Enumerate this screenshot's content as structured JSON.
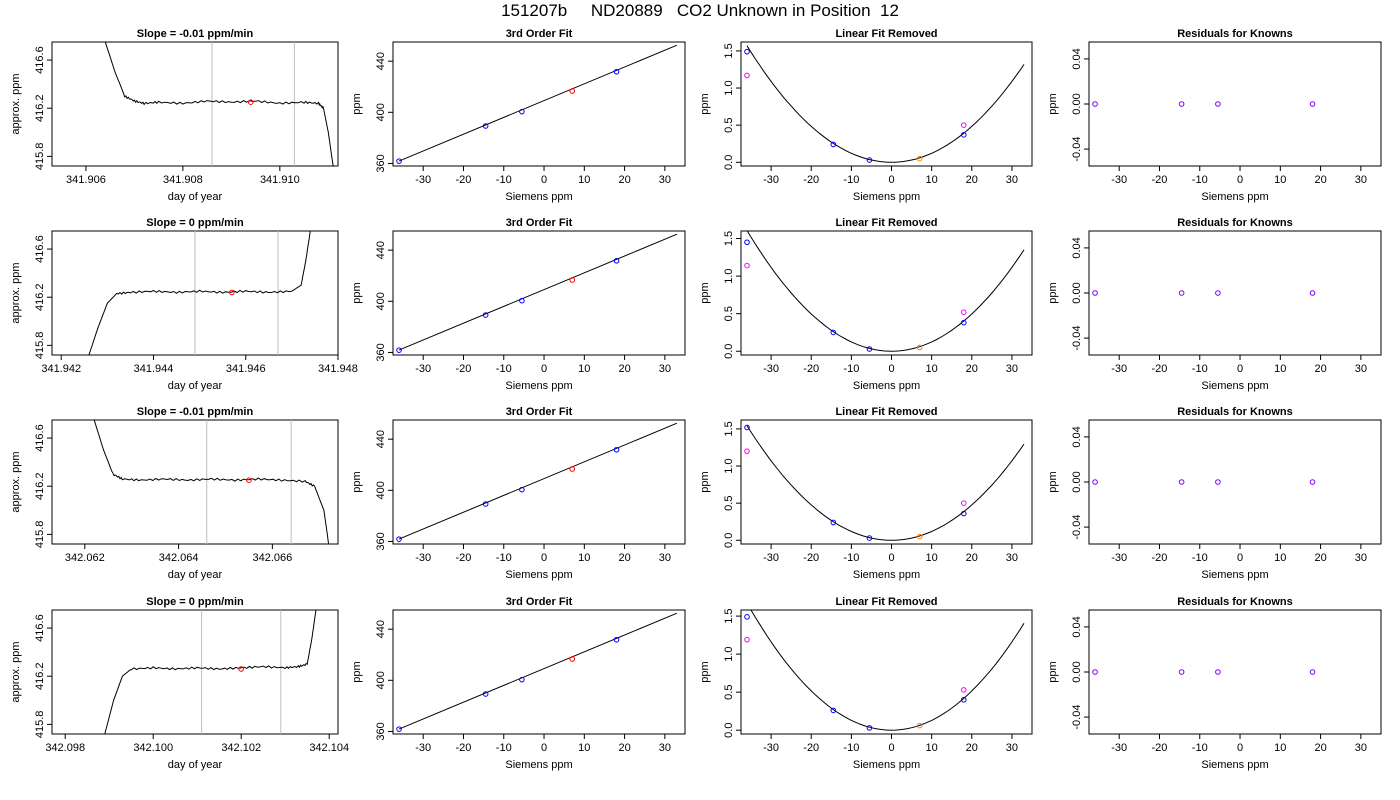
{
  "title": "151207b     ND20889   CO2 Unknown in Position  12",
  "labels": {
    "time_title_prefix": "Slope =  ",
    "time_title_suffix": "  ppm/min",
    "time_xlabel": "day of year",
    "time_ylabel": "approx. ppm",
    "fit_title": "3rd Order Fit",
    "fit_xlabel": "Siemens ppm",
    "fit_ylabel": "ppm",
    "lin_title": "Linear Fit Removed",
    "lin_xlabel": "Siemens ppm",
    "lin_ylabel": "ppm",
    "res_title": "Residuals for Knowns",
    "res_xlabel": "Siemens ppm",
    "res_ylabel": "ppm"
  },
  "colors": {
    "known_points": "#0000ff",
    "unknown_point": "#ff0000",
    "alt_points": "#ff00ff",
    "residual_points": "#8000ff",
    "highlight_point": "#ff8000",
    "line": "#000000",
    "window_lines": "#bebebe"
  },
  "chart_data": [
    {
      "row": 1,
      "time_trace": {
        "type": "line",
        "slope_value": "-0.01",
        "xlim": [
          341.9053,
          341.9112
        ],
        "ylim": [
          415.72,
          416.75
        ],
        "xticks": [
          "341.906",
          "341.908",
          "341.910"
        ],
        "yticks": [
          "415.8",
          "416.2",
          "416.6"
        ],
        "window": [
          341.9086,
          341.9103
        ],
        "unknown_point": {
          "x": 341.9094,
          "y": 416.25
        },
        "trace": [
          [
            341.9064,
            416.75
          ],
          [
            341.9066,
            416.5
          ],
          [
            341.9068,
            416.3
          ],
          [
            341.907,
            416.26
          ],
          [
            341.9072,
            416.24
          ],
          [
            341.9075,
            416.25
          ],
          [
            341.908,
            416.24
          ],
          [
            341.9085,
            416.26
          ],
          [
            341.909,
            416.25
          ],
          [
            341.9095,
            416.26
          ],
          [
            341.91,
            416.24
          ],
          [
            341.9105,
            416.25
          ],
          [
            341.9108,
            416.24
          ],
          [
            341.9109,
            416.2
          ],
          [
            341.911,
            416.0
          ],
          [
            341.9111,
            415.72
          ]
        ]
      },
      "fit": {
        "type": "line",
        "xlim": [
          -37.5,
          35.0
        ],
        "ylim": [
          358,
          455
        ],
        "xticks": [
          -30,
          -20,
          -10,
          0,
          10,
          20,
          30
        ],
        "yticks": [
          360,
          400,
          440
        ],
        "line": [
          [
            -36,
            361.8
          ],
          [
            33,
            452.5
          ]
        ],
        "knowns": [
          [
            -36,
            361.8
          ],
          [
            -14.5,
            389.3
          ],
          [
            -5.5,
            400.5
          ],
          [
            18,
            431.7
          ]
        ],
        "unknown": [
          [
            7,
            416.7
          ]
        ]
      },
      "linear_removed": {
        "type": "line",
        "xlim": [
          -37.5,
          35.0
        ],
        "ylim": [
          -0.05,
          1.62
        ],
        "xticks": [
          -30,
          -20,
          -10,
          0,
          10,
          20,
          30
        ],
        "yticks": [
          0.0,
          0.5,
          1.0,
          1.5
        ],
        "curve_coef": {
          "a": 0.00121,
          "b": -0.0,
          "c": 0.0
        },
        "knowns": [
          [
            -36,
            1.49
          ],
          [
            -14.5,
            0.24
          ],
          [
            -5.5,
            0.03
          ],
          [
            18,
            0.37
          ]
        ],
        "alt": [
          [
            -36,
            1.17
          ],
          [
            18,
            0.5
          ]
        ],
        "highlight": [
          [
            7,
            0.05
          ]
        ]
      },
      "residuals": {
        "type": "scatter",
        "xlim": [
          -37.5,
          35.0
        ],
        "ylim": [
          -0.055,
          0.055
        ],
        "xticks": [
          -30,
          -20,
          -10,
          0,
          10,
          20,
          30
        ],
        "yticks": [
          "-0.04",
          "0.00",
          "0.04"
        ],
        "points": [
          [
            -36,
            0.0
          ],
          [
            -14.5,
            0.0
          ],
          [
            -5.5,
            0.0
          ],
          [
            18,
            0.0
          ]
        ]
      }
    },
    {
      "row": 2,
      "time_trace": {
        "type": "line",
        "slope_value": "0",
        "xlim": [
          341.9418,
          341.948
        ],
        "ylim": [
          415.72,
          416.75
        ],
        "xticks": [
          "341.942",
          "341.944",
          "341.946",
          "341.948"
        ],
        "yticks": [
          "415.8",
          "416.2",
          "416.6"
        ],
        "window": [
          341.9449,
          341.9467
        ],
        "unknown_point": {
          "x": 341.9457,
          "y": 416.24
        },
        "trace": [
          [
            341.9426,
            415.72
          ],
          [
            341.9428,
            415.95
          ],
          [
            341.943,
            416.15
          ],
          [
            341.9432,
            416.23
          ],
          [
            341.9435,
            416.24
          ],
          [
            341.944,
            416.25
          ],
          [
            341.9445,
            416.24
          ],
          [
            341.945,
            416.25
          ],
          [
            341.9455,
            416.24
          ],
          [
            341.946,
            416.25
          ],
          [
            341.9465,
            416.24
          ],
          [
            341.947,
            416.25
          ],
          [
            341.9472,
            416.3
          ],
          [
            341.9473,
            416.5
          ],
          [
            341.9474,
            416.75
          ]
        ]
      },
      "fit": {
        "type": "line",
        "xlim": [
          -37.5,
          35.0
        ],
        "ylim": [
          358,
          455
        ],
        "xticks": [
          -30,
          -20,
          -10,
          0,
          10,
          20,
          30
        ],
        "yticks": [
          360,
          400,
          440
        ],
        "line": [
          [
            -36,
            361.8
          ],
          [
            33,
            452.5
          ]
        ],
        "knowns": [
          [
            -36,
            361.8
          ],
          [
            -14.5,
            389.3
          ],
          [
            -5.5,
            400.5
          ],
          [
            18,
            431.7
          ]
        ],
        "unknown": [
          [
            7,
            416.7
          ]
        ]
      },
      "linear_removed": {
        "type": "line",
        "xlim": [
          -37.5,
          35.0
        ],
        "ylim": [
          -0.05,
          1.6
        ],
        "xticks": [
          -30,
          -20,
          -10,
          0,
          10,
          20,
          30
        ],
        "yticks": [
          0.0,
          0.5,
          1.0,
          1.5
        ],
        "curve_coef": {
          "a": 0.00124,
          "b": 0.0,
          "c": 0.0
        },
        "knowns": [
          [
            -36,
            1.45
          ],
          [
            -14.5,
            0.25
          ],
          [
            -5.5,
            0.03
          ],
          [
            18,
            0.38
          ]
        ],
        "alt": [
          [
            -36,
            1.14
          ],
          [
            18,
            0.52
          ]
        ],
        "highlight": [
          [
            7,
            0.05
          ]
        ]
      },
      "residuals": {
        "type": "scatter",
        "xlim": [
          -37.5,
          35.0
        ],
        "ylim": [
          -0.055,
          0.055
        ],
        "xticks": [
          -30,
          -20,
          -10,
          0,
          10,
          20,
          30
        ],
        "yticks": [
          "-0.04",
          "0.00",
          "0.04"
        ],
        "points": [
          [
            -36,
            0.0
          ],
          [
            -14.5,
            0.0
          ],
          [
            -5.5,
            0.0
          ],
          [
            18,
            0.0
          ]
        ]
      }
    },
    {
      "row": 3,
      "time_trace": {
        "type": "line",
        "slope_value": "-0.01",
        "xlim": [
          341.0,
          342.0
        ],
        "xlim_real": [
          342.0613,
          342.0674
        ],
        "ylim": [
          415.72,
          416.75
        ],
        "xticks": [
          "342.062",
          "342.064",
          "342.066"
        ],
        "yticks": [
          "415.8",
          "416.2",
          "416.6"
        ],
        "window": [
          342.0646,
          342.0664
        ],
        "unknown_point": {
          "x": 342.0655,
          "y": 416.25
        },
        "trace": [
          [
            342.0622,
            416.75
          ],
          [
            342.0624,
            416.5
          ],
          [
            342.0626,
            416.3
          ],
          [
            342.0628,
            416.26
          ],
          [
            342.0632,
            416.25
          ],
          [
            342.0637,
            416.26
          ],
          [
            342.0642,
            416.25
          ],
          [
            342.0647,
            416.26
          ],
          [
            342.0652,
            416.25
          ],
          [
            342.0657,
            416.26
          ],
          [
            342.0662,
            416.25
          ],
          [
            342.0667,
            416.24
          ],
          [
            342.0669,
            416.2
          ],
          [
            342.0671,
            416.0
          ],
          [
            342.0672,
            415.72
          ]
        ]
      },
      "fit": {
        "type": "line",
        "xlim": [
          -37.5,
          35.0
        ],
        "ylim": [
          358,
          455
        ],
        "xticks": [
          -30,
          -20,
          -10,
          0,
          10,
          20,
          30
        ],
        "yticks": [
          360,
          400,
          440
        ],
        "line": [
          [
            -36,
            361.8
          ],
          [
            33,
            452.5
          ]
        ],
        "knowns": [
          [
            -36,
            361.8
          ],
          [
            -14.5,
            389.3
          ],
          [
            -5.5,
            400.5
          ],
          [
            18,
            431.7
          ]
        ],
        "unknown": [
          [
            7,
            416.7
          ]
        ]
      },
      "linear_removed": {
        "type": "line",
        "xlim": [
          -37.5,
          35.0
        ],
        "ylim": [
          -0.05,
          1.62
        ],
        "xticks": [
          -30,
          -20,
          -10,
          0,
          10,
          20,
          30
        ],
        "yticks": [
          0.0,
          0.5,
          1.0,
          1.5
        ],
        "curve_coef": {
          "a": 0.00119,
          "b": 0.0,
          "c": 0.0
        },
        "knowns": [
          [
            -36,
            1.52
          ],
          [
            -14.5,
            0.24
          ],
          [
            -5.5,
            0.03
          ],
          [
            18,
            0.36
          ]
        ],
        "alt": [
          [
            -36,
            1.2
          ],
          [
            18,
            0.5
          ]
        ],
        "highlight": [
          [
            7,
            0.05
          ]
        ]
      },
      "residuals": {
        "type": "scatter",
        "xlim": [
          -37.5,
          35.0
        ],
        "ylim": [
          -0.055,
          0.055
        ],
        "xticks": [
          -30,
          -20,
          -10,
          0,
          10,
          20,
          30
        ],
        "yticks": [
          "-0.04",
          "0.00",
          "0.04"
        ],
        "points": [
          [
            -36,
            0.0
          ],
          [
            -14.5,
            0.0
          ],
          [
            -5.5,
            0.0
          ],
          [
            18,
            0.0
          ]
        ]
      }
    },
    {
      "row": 4,
      "time_trace": {
        "type": "line",
        "slope_value": "0",
        "xlim_real": [
          342.0977,
          342.1042
        ],
        "ylim": [
          415.72,
          416.75
        ],
        "xticks": [
          "342.098",
          "342.100",
          "342.102",
          "342.104"
        ],
        "yticks": [
          "415.8",
          "416.2",
          "416.6"
        ],
        "window": [
          342.1011,
          342.1029
        ],
        "unknown_point": {
          "x": 342.102,
          "y": 416.26
        },
        "trace": [
          [
            342.0989,
            415.72
          ],
          [
            342.0991,
            416.0
          ],
          [
            342.0993,
            416.2
          ],
          [
            342.0995,
            416.26
          ],
          [
            342.1,
            416.27
          ],
          [
            342.1005,
            416.26
          ],
          [
            342.101,
            416.27
          ],
          [
            342.1015,
            416.26
          ],
          [
            342.102,
            416.27
          ],
          [
            342.1025,
            416.28
          ],
          [
            342.103,
            416.27
          ],
          [
            342.1033,
            416.28
          ],
          [
            342.1035,
            416.3
          ],
          [
            342.1036,
            416.5
          ],
          [
            342.1037,
            416.75
          ]
        ]
      },
      "fit": {
        "type": "line",
        "xlim": [
          -37.5,
          35.0
        ],
        "ylim": [
          358,
          455
        ],
        "xticks": [
          -30,
          -20,
          -10,
          0,
          10,
          20,
          30
        ],
        "yticks": [
          360,
          400,
          440
        ],
        "line": [
          [
            -36,
            361.8
          ],
          [
            33,
            452.5
          ]
        ],
        "knowns": [
          [
            -36,
            361.8
          ],
          [
            -14.5,
            389.3
          ],
          [
            -5.5,
            400.5
          ],
          [
            18,
            431.7
          ]
        ],
        "unknown": [
          [
            7,
            416.7
          ]
        ]
      },
      "linear_removed": {
        "type": "line",
        "xlim": [
          -37.5,
          35.0
        ],
        "ylim": [
          -0.05,
          1.58
        ],
        "xticks": [
          -30,
          -20,
          -10,
          0,
          10,
          20,
          30
        ],
        "yticks": [
          0.0,
          0.5,
          1.0,
          1.5
        ],
        "curve_coef": {
          "a": 0.00129,
          "b": 0.0,
          "c": 0.0
        },
        "knowns": [
          [
            -36,
            1.49
          ],
          [
            -14.5,
            0.26
          ],
          [
            -5.5,
            0.03
          ],
          [
            18,
            0.4
          ]
        ],
        "alt": [
          [
            -36,
            1.19
          ],
          [
            18,
            0.53
          ]
        ],
        "highlight": [
          [
            7,
            0.06
          ]
        ]
      },
      "residuals": {
        "type": "scatter",
        "xlim": [
          -37.5,
          35.0
        ],
        "ylim": [
          -0.055,
          0.055
        ],
        "xticks": [
          -30,
          -20,
          -10,
          0,
          10,
          20,
          30
        ],
        "yticks": [
          "-0.04",
          "0.00",
          "0.04"
        ],
        "points": [
          [
            -36,
            0.0
          ],
          [
            -14.5,
            0.0
          ],
          [
            -5.5,
            0.0
          ],
          [
            18,
            0.0
          ]
        ]
      }
    }
  ]
}
